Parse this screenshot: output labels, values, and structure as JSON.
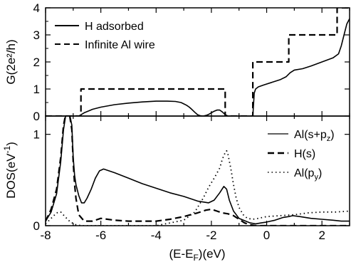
{
  "chart_data": [
    {
      "type": "line",
      "panel": "top",
      "ylabel": "G(2e²/h)",
      "xlim": [
        -8,
        3
      ],
      "ylim": [
        0,
        4
      ],
      "yticks": [
        "0",
        "1",
        "2",
        "3",
        "4"
      ],
      "legend_position": "top-left",
      "series": [
        {
          "name": "H adsorbed",
          "style": "solid",
          "x": [
            -8.0,
            -6.8,
            -6.6,
            -6.3,
            -6.0,
            -5.5,
            -5.0,
            -4.5,
            -4.0,
            -3.6,
            -3.3,
            -3.1,
            -3.0,
            -2.9,
            -2.8,
            -2.7,
            -2.6,
            -2.5,
            -2.4,
            -2.3,
            -2.2,
            -2.1,
            -2.0,
            -1.9,
            -1.8,
            -1.7,
            -1.6,
            -1.5,
            -1.4,
            -0.5,
            -0.45,
            -0.4,
            -0.3,
            -0.1,
            0.2,
            0.5,
            0.7,
            0.85,
            1.0,
            1.3,
            1.6,
            2.0,
            2.4,
            2.6,
            2.7,
            2.8,
            2.9,
            3.0
          ],
          "y": [
            0,
            0,
            0.12,
            0.25,
            0.33,
            0.42,
            0.48,
            0.52,
            0.55,
            0.55,
            0.54,
            0.5,
            0.45,
            0.4,
            0.33,
            0.24,
            0.14,
            0.05,
            0.01,
            0.0,
            0.02,
            0.06,
            0.12,
            0.18,
            0.22,
            0.22,
            0.15,
            0.05,
            0,
            0,
            0.85,
            1.0,
            1.08,
            1.15,
            1.25,
            1.35,
            1.45,
            1.6,
            1.7,
            1.75,
            1.85,
            2.0,
            2.15,
            2.3,
            2.6,
            3.0,
            3.4,
            3.6
          ]
        },
        {
          "name": "Infinite Al wire",
          "style": "dashed",
          "x": [
            -8.0,
            -6.72,
            -6.72,
            -1.5,
            -1.5,
            -0.5,
            -0.5,
            0.8,
            0.8,
            2.55,
            2.55,
            3.0
          ],
          "y": [
            0,
            0,
            1,
            1,
            0,
            0,
            2,
            2,
            3,
            3,
            4,
            4
          ]
        }
      ]
    },
    {
      "type": "line",
      "panel": "bottom",
      "xlabel": "(E-E_F)(eV)",
      "ylabel": "DOS(eV⁻¹)",
      "xlim": [
        -8,
        3
      ],
      "ylim": [
        0,
        1.2
      ],
      "xticks": [
        "-8",
        "-6",
        "-4",
        "-2",
        "0",
        "2"
      ],
      "yticks": [
        "0",
        "1"
      ],
      "legend_position": "top-right",
      "series": [
        {
          "name": "Al(s+p_z)",
          "style": "solid",
          "x": [
            -8.0,
            -7.8,
            -7.6,
            -7.45,
            -7.35,
            -7.25,
            -7.15,
            -7.05,
            -7.0,
            -6.95,
            -6.9,
            -6.8,
            -6.7,
            -6.6,
            -6.5,
            -6.35,
            -6.2,
            -6.05,
            -5.9,
            -5.5,
            -5.0,
            -4.5,
            -4.0,
            -3.5,
            -3.0,
            -2.5,
            -2.1,
            -1.9,
            -1.7,
            -1.55,
            -1.45,
            -1.35,
            -1.2,
            -1.0,
            -0.6,
            -0.4,
            -0.2,
            0.0,
            0.3,
            0.6,
            0.8,
            0.95,
            1.2,
            1.6,
            2.0,
            2.4,
            2.7,
            3.0
          ],
          "y": [
            0.05,
            0.15,
            0.35,
            0.7,
            1.05,
            1.25,
            1.25,
            1.1,
            0.75,
            0.55,
            0.45,
            0.33,
            0.25,
            0.25,
            0.3,
            0.4,
            0.52,
            0.6,
            0.62,
            0.58,
            0.52,
            0.46,
            0.41,
            0.36,
            0.32,
            0.27,
            0.25,
            0.28,
            0.36,
            0.43,
            0.4,
            0.28,
            0.16,
            0.08,
            0.03,
            0.02,
            0.03,
            0.04,
            0.06,
            0.09,
            0.1,
            0.11,
            0.1,
            0.08,
            0.07,
            0.06,
            0.05,
            0.05
          ]
        },
        {
          "name": "H(s)",
          "style": "dashed",
          "x": [
            -8.0,
            -7.8,
            -7.6,
            -7.45,
            -7.35,
            -7.25,
            -7.15,
            -7.05,
            -7.0,
            -6.95,
            -6.9,
            -6.8,
            -6.6,
            -6.3,
            -6.0,
            -5.5,
            -5.0,
            -4.5,
            -4.0,
            -3.5,
            -3.0,
            -2.5,
            -2.2,
            -2.0,
            -1.8,
            -1.6,
            -1.4,
            -1.2,
            -1.0,
            -0.8,
            -0.6,
            -0.4,
            0.0,
            1.0,
            2.0,
            3.0
          ],
          "y": [
            0.05,
            0.18,
            0.4,
            0.75,
            1.1,
            1.25,
            1.25,
            1.05,
            0.7,
            0.45,
            0.3,
            0.12,
            0.05,
            0.05,
            0.08,
            0.06,
            0.05,
            0.05,
            0.05,
            0.07,
            0.1,
            0.14,
            0.17,
            0.18,
            0.16,
            0.14,
            0.13,
            0.11,
            0.07,
            0.03,
            0.01,
            0.0,
            0.0,
            0.0,
            0.0,
            0.0
          ]
        },
        {
          "name": "Al(p_y)",
          "style": "dotted",
          "x": [
            -8.0,
            -7.8,
            -7.6,
            -7.45,
            -7.3,
            -7.1,
            -6.9,
            -6.7,
            -6.5,
            -6.0,
            -5.0,
            -4.0,
            -3.0,
            -2.6,
            -2.3,
            -2.1,
            -1.9,
            -1.7,
            -1.6,
            -1.5,
            -1.45,
            -1.4,
            -1.3,
            -1.2,
            -1.1,
            -1.0,
            -0.85,
            -0.7,
            -0.5,
            -0.3,
            0.0,
            0.5,
            1.0,
            1.5,
            2.0,
            2.5,
            3.0
          ],
          "y": [
            0.02,
            0.08,
            0.14,
            0.15,
            0.1,
            0.04,
            0.01,
            0.0,
            0.0,
            0.0,
            0.0,
            0.0,
            0.06,
            0.15,
            0.3,
            0.42,
            0.52,
            0.63,
            0.73,
            0.8,
            0.82,
            0.78,
            0.63,
            0.45,
            0.3,
            0.2,
            0.12,
            0.08,
            0.07,
            0.08,
            0.1,
            0.11,
            0.12,
            0.14,
            0.15,
            0.15,
            0.16
          ]
        }
      ]
    }
  ]
}
